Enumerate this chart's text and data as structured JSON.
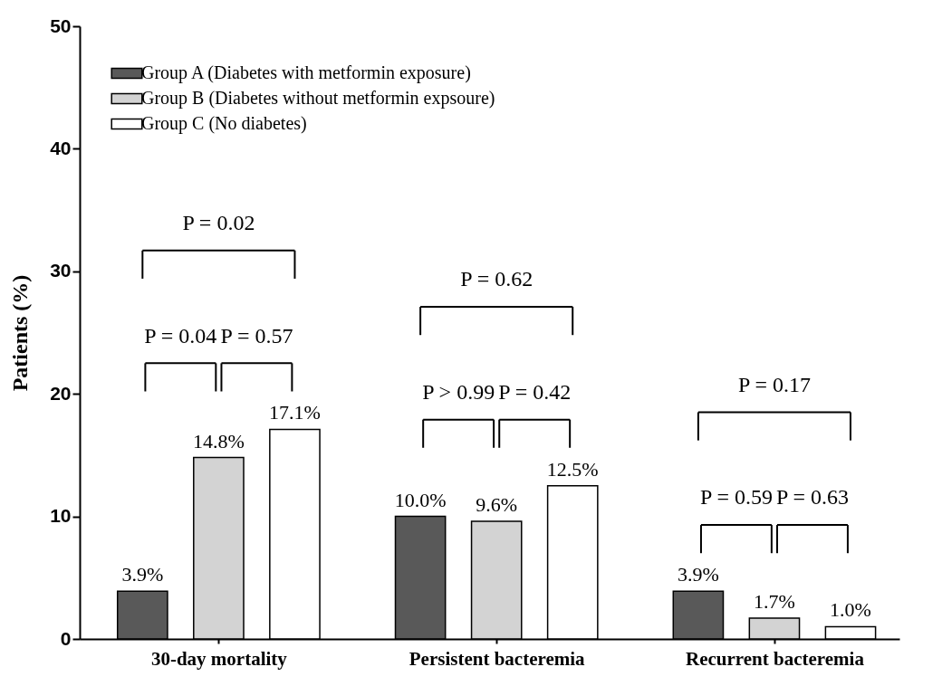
{
  "chart_data": {
    "type": "bar",
    "ylabel": "Patients (%)",
    "categories": [
      "30-day mortality",
      "Persistent bacteremia",
      "Recurrent bacteremia"
    ],
    "series": [
      {
        "name": "Group A (Diabetes with metformin exposure)",
        "color": "#595959",
        "values": [
          3.9,
          10.0,
          3.9
        ],
        "value_labels": [
          "3.9%",
          "10.0%",
          "3.9%"
        ]
      },
      {
        "name": "Group B (Diabetes without metformin expsoure)",
        "color": "#d3d3d3",
        "values": [
          14.8,
          9.6,
          1.7
        ],
        "value_labels": [
          "14.8%",
          "9.6%",
          "1.7%"
        ]
      },
      {
        "name": "Group C (No diabetes)",
        "color": "#ffffff",
        "values": [
          17.1,
          12.5,
          1.0
        ],
        "value_labels": [
          "17.1%",
          "12.5%",
          "1.0%"
        ]
      }
    ],
    "ylim": [
      0,
      50
    ],
    "yticks": [
      0,
      10,
      20,
      30,
      40,
      50
    ],
    "grid": false,
    "legend": "top left",
    "annotations": [
      "P = 0.02",
      "P = 0.04",
      "P = 0.57",
      "P = 0.62",
      "P > 0.99",
      "P = 0.42",
      "P = 0.17",
      "P = 0.59",
      "P = 0.63"
    ]
  }
}
